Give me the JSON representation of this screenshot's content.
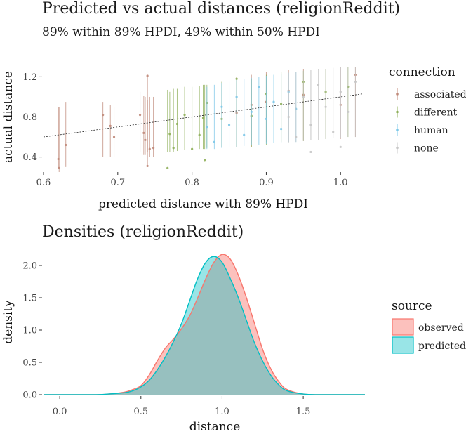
{
  "chart_data": [
    {
      "type": "scatter",
      "title": "Predicted vs actual distances (religionReddit)",
      "subtitle": "89% within 89% HPDI, 49% within 50% HPDI",
      "xlabel": "predicted distance with 89% HPDI",
      "ylabel": "actual distance",
      "xlim": [
        0.6,
        1.03
      ],
      "ylim": [
        0.25,
        1.35
      ],
      "x_ticks": [
        0.6,
        0.7,
        0.8,
        0.9,
        1.0
      ],
      "x_tick_labels": [
        "0.6",
        "0.7",
        "0.8",
        "0.9",
        "1.0"
      ],
      "y_ticks": [
        0.4,
        0.8,
        1.2
      ],
      "y_tick_labels": [
        "0.4",
        "0.8",
        "1.2"
      ],
      "reference_line": {
        "slope": 1,
        "intercept": 0
      },
      "legend_title": "connection",
      "legend": [
        {
          "label": "associated",
          "color": "#C08A7A"
        },
        {
          "label": "different",
          "color": "#8FAF5A"
        },
        {
          "label": "human",
          "color": "#7EC8E8"
        },
        {
          "label": "none",
          "color": "#C8C8C8"
        }
      ],
      "series": [
        {
          "name": "associated",
          "points": [
            {
              "x": 0.62,
              "y": 0.38,
              "lo": 0.29,
              "hi": 0.9
            },
            {
              "x": 0.621,
              "y": 0.29,
              "lo": 0.25,
              "hi": 0.9
            },
            {
              "x": 0.63,
              "y": 0.52,
              "lo": 0.3,
              "hi": 0.95
            },
            {
              "x": 0.68,
              "y": 0.82,
              "lo": 0.4,
              "hi": 0.95
            },
            {
              "x": 0.69,
              "y": 0.71,
              "lo": 0.4,
              "hi": 0.92
            },
            {
              "x": 0.695,
              "y": 0.6,
              "lo": 0.4,
              "hi": 0.9
            },
            {
              "x": 0.73,
              "y": 0.82,
              "lo": 0.45,
              "hi": 1.05
            },
            {
              "x": 0.735,
              "y": 0.64,
              "lo": 0.42,
              "hi": 1.01
            },
            {
              "x": 0.737,
              "y": 0.57,
              "lo": 0.42,
              "hi": 1.0
            },
            {
              "x": 0.74,
              "y": 0.31,
              "lo": 0.3,
              "hi": 0.97
            },
            {
              "x": 0.74,
              "y": 1.21,
              "lo": 0.45,
              "hi": 1.22
            },
            {
              "x": 0.743,
              "y": 0.48,
              "lo": 0.4,
              "hi": 1.0
            },
            {
              "x": 0.748,
              "y": 0.49,
              "lo": 0.4,
              "hi": 1.0
            },
            {
              "x": 0.86,
              "y": 0.84,
              "lo": 0.5,
              "hi": 1.2
            },
            {
              "x": 0.88,
              "y": 0.92,
              "lo": 0.5,
              "hi": 1.22
            },
            {
              "x": 0.9,
              "y": 0.95,
              "lo": 0.55,
              "hi": 1.25
            },
            {
              "x": 0.93,
              "y": 1.06,
              "lo": 0.55,
              "hi": 1.27
            },
            {
              "x": 0.95,
              "y": 1.02,
              "lo": 0.56,
              "hi": 1.28
            },
            {
              "x": 1.0,
              "y": 0.92,
              "lo": 0.58,
              "hi": 1.3
            },
            {
              "x": 1.02,
              "y": 1.22,
              "lo": 0.6,
              "hi": 1.3
            }
          ]
        },
        {
          "name": "different",
          "points": [
            {
              "x": 0.767,
              "y": 0.29,
              "lo": 0.45,
              "hi": 1.07
            },
            {
              "x": 0.77,
              "y": 0.63,
              "lo": 0.45,
              "hi": 1.05
            },
            {
              "x": 0.775,
              "y": 0.49,
              "lo": 0.45,
              "hi": 1.08
            },
            {
              "x": 0.78,
              "y": 0.73,
              "lo": 0.46,
              "hi": 1.08
            },
            {
              "x": 0.79,
              "y": 0.82,
              "lo": 0.47,
              "hi": 1.1
            },
            {
              "x": 0.8,
              "y": 0.48,
              "lo": 0.47,
              "hi": 1.1
            },
            {
              "x": 0.81,
              "y": 0.62,
              "lo": 0.48,
              "hi": 1.11
            },
            {
              "x": 0.815,
              "y": 0.79,
              "lo": 0.48,
              "hi": 1.12
            },
            {
              "x": 0.817,
              "y": 0.37,
              "lo": 0.48,
              "hi": 1.12
            },
            {
              "x": 0.82,
              "y": 0.94,
              "lo": 0.49,
              "hi": 1.12
            },
            {
              "x": 0.84,
              "y": 0.78,
              "lo": 0.5,
              "hi": 1.15
            },
            {
              "x": 0.86,
              "y": 1.18,
              "lo": 0.5,
              "hi": 1.18
            },
            {
              "x": 0.88,
              "y": 0.81,
              "lo": 0.5,
              "hi": 1.18
            },
            {
              "x": 0.9,
              "y": 1.03,
              "lo": 0.52,
              "hi": 1.22
            },
            {
              "x": 0.92,
              "y": 0.93,
              "lo": 0.55,
              "hi": 1.25
            },
            {
              "x": 0.95,
              "y": 1.15,
              "lo": 0.56,
              "hi": 1.26
            },
            {
              "x": 0.98,
              "y": 1.05,
              "lo": 0.58,
              "hi": 1.28
            },
            {
              "x": 1.01,
              "y": 1.1,
              "lo": 0.6,
              "hi": 1.3
            }
          ]
        },
        {
          "name": "human",
          "points": [
            {
              "x": 0.82,
              "y": 0.7,
              "lo": 0.48,
              "hi": 1.1
            },
            {
              "x": 0.83,
              "y": 0.55,
              "lo": 0.48,
              "hi": 1.12
            },
            {
              "x": 0.84,
              "y": 0.9,
              "lo": 0.49,
              "hi": 1.14
            },
            {
              "x": 0.85,
              "y": 0.72,
              "lo": 0.5,
              "hi": 1.15
            },
            {
              "x": 0.86,
              "y": 1.0,
              "lo": 0.5,
              "hi": 1.17
            },
            {
              "x": 0.87,
              "y": 0.62,
              "lo": 0.51,
              "hi": 1.18
            },
            {
              "x": 0.88,
              "y": 0.85,
              "lo": 0.52,
              "hi": 1.19
            },
            {
              "x": 0.89,
              "y": 1.1,
              "lo": 0.52,
              "hi": 1.2
            },
            {
              "x": 0.9,
              "y": 0.78,
              "lo": 0.53,
              "hi": 1.21
            },
            {
              "x": 0.91,
              "y": 0.95,
              "lo": 0.54,
              "hi": 1.22
            },
            {
              "x": 0.92,
              "y": 0.68,
              "lo": 0.54,
              "hi": 1.23
            },
            {
              "x": 0.93,
              "y": 1.05,
              "lo": 0.55,
              "hi": 1.24
            },
            {
              "x": 0.94,
              "y": 0.88,
              "lo": 0.55,
              "hi": 1.25
            }
          ]
        },
        {
          "name": "none",
          "points": [
            {
              "x": 0.93,
              "y": 0.8,
              "lo": 0.54,
              "hi": 1.24
            },
            {
              "x": 0.94,
              "y": 0.6,
              "lo": 0.55,
              "hi": 1.25
            },
            {
              "x": 0.95,
              "y": 1.0,
              "lo": 0.56,
              "hi": 1.26
            },
            {
              "x": 0.96,
              "y": 0.72,
              "lo": 0.57,
              "hi": 1.27
            },
            {
              "x": 0.97,
              "y": 1.12,
              "lo": 0.57,
              "hi": 1.28
            },
            {
              "x": 0.98,
              "y": 0.9,
              "lo": 0.58,
              "hi": 1.28
            },
            {
              "x": 0.99,
              "y": 0.65,
              "lo": 0.59,
              "hi": 1.29
            },
            {
              "x": 1.0,
              "y": 1.05,
              "lo": 0.59,
              "hi": 1.3
            },
            {
              "x": 1.01,
              "y": 0.85,
              "lo": 0.6,
              "hi": 1.3
            },
            {
              "x": 1.02,
              "y": 1.15,
              "lo": 0.6,
              "hi": 1.3
            },
            {
              "x": 0.96,
              "y": 0.45,
              "lo": 0.57,
              "hi": 1.27
            },
            {
              "x": 1.0,
              "y": 0.5,
              "lo": 0.59,
              "hi": 1.3
            }
          ]
        }
      ]
    },
    {
      "type": "area",
      "title": "Densities (religionReddit)",
      "xlabel": "distance",
      "ylabel": "density",
      "xlim": [
        -0.1,
        1.88
      ],
      "ylim": [
        0,
        2.25
      ],
      "x_ticks": [
        0.0,
        0.5,
        1.0,
        1.5
      ],
      "x_tick_labels": [
        "0.0",
        "0.5",
        "1.0",
        "1.5"
      ],
      "y_ticks": [
        0.0,
        0.5,
        1.0,
        1.5,
        2.0
      ],
      "y_tick_labels": [
        "0.0",
        "0.5",
        "1.0",
        "1.5",
        "2.0"
      ],
      "legend_title": "source",
      "legend": [
        {
          "label": "observed",
          "color": "#F8766D"
        },
        {
          "label": "predicted",
          "color": "#00BFC4"
        }
      ],
      "series": [
        {
          "name": "observed",
          "x": [
            -0.1,
            0.2,
            0.3,
            0.4,
            0.45,
            0.5,
            0.55,
            0.6,
            0.65,
            0.7,
            0.75,
            0.8,
            0.85,
            0.9,
            0.95,
            1.0,
            1.05,
            1.1,
            1.15,
            1.2,
            1.25,
            1.3,
            1.35,
            1.4,
            1.5,
            1.6,
            1.88
          ],
          "y": [
            0,
            0.0,
            0.01,
            0.04,
            0.08,
            0.14,
            0.3,
            0.52,
            0.72,
            0.86,
            1.02,
            1.22,
            1.5,
            1.8,
            2.05,
            2.17,
            2.1,
            1.85,
            1.5,
            1.1,
            0.7,
            0.4,
            0.2,
            0.08,
            0.01,
            0.0,
            0
          ]
        },
        {
          "name": "predicted",
          "x": [
            -0.1,
            0.2,
            0.3,
            0.4,
            0.45,
            0.5,
            0.55,
            0.6,
            0.65,
            0.7,
            0.75,
            0.8,
            0.85,
            0.9,
            0.95,
            1.0,
            1.05,
            1.1,
            1.15,
            1.2,
            1.25,
            1.3,
            1.35,
            1.4,
            1.5,
            1.6,
            1.88
          ],
          "y": [
            0,
            0.0,
            0.01,
            0.03,
            0.06,
            0.12,
            0.22,
            0.38,
            0.58,
            0.82,
            1.1,
            1.45,
            1.8,
            2.05,
            2.14,
            2.05,
            1.8,
            1.5,
            1.15,
            0.8,
            0.52,
            0.3,
            0.15,
            0.06,
            0.01,
            0.0,
            0
          ]
        }
      ]
    }
  ]
}
